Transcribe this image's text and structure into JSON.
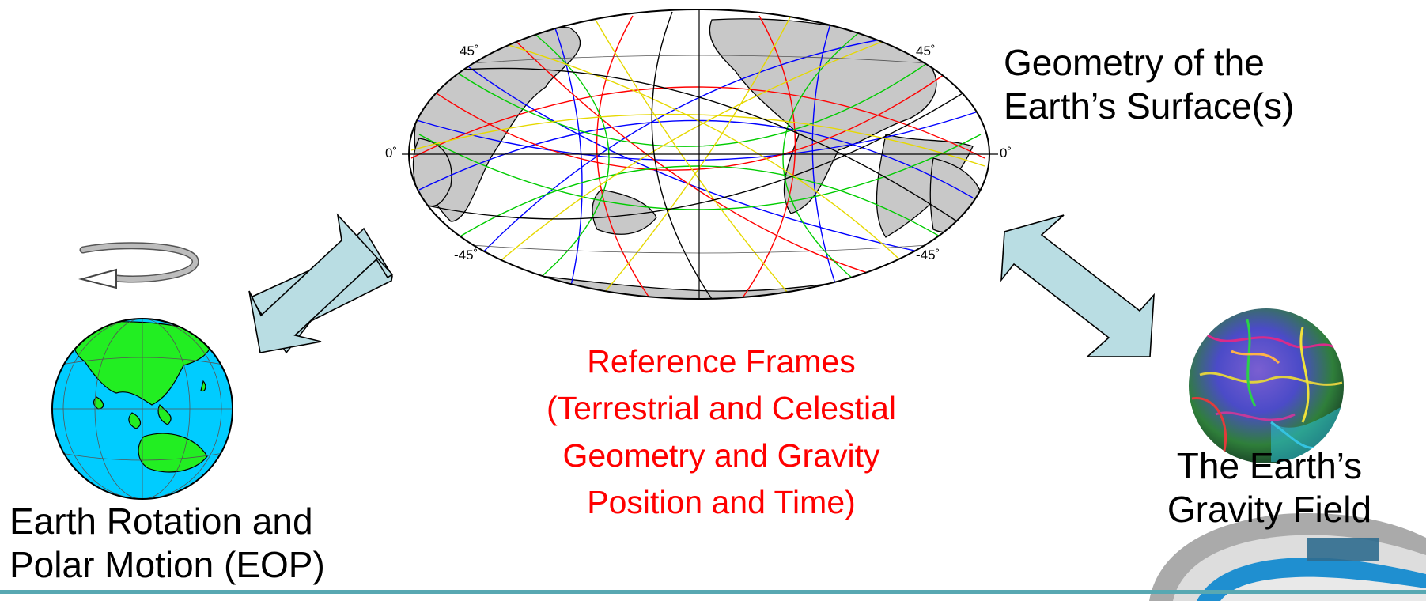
{
  "map": {
    "lat_labels": {
      "n45_left": "45˚",
      "n45_right": "45˚",
      "zero_left": "0˚",
      "zero_right": "0˚",
      "s45_left": "-45˚",
      "s45_right": "-45˚"
    }
  },
  "labels": {
    "surface_line1": "Geometry of the",
    "surface_line2": "Earth’s Surface(s)",
    "rotation_line1": "Earth Rotation and",
    "rotation_line2": "Polar Motion (EOP)",
    "gravity_line1": "The Earth’s",
    "gravity_line2": "Gravity Field"
  },
  "center": {
    "line1": "Reference Frames",
    "line2": "(Terrestrial and Celestial",
    "line3": "Geometry and Gravity",
    "line4": "Position and Time)"
  },
  "colors": {
    "arrow_fill": "#b9dde3",
    "ocean": "#00ccff",
    "land": "#22ee22",
    "center_text": "#ff0000",
    "teal_bar": "#58a8b2"
  },
  "icons": [
    "rotation-arrow-icon",
    "globe-icon",
    "gravity-globe-icon",
    "logo-icon"
  ]
}
